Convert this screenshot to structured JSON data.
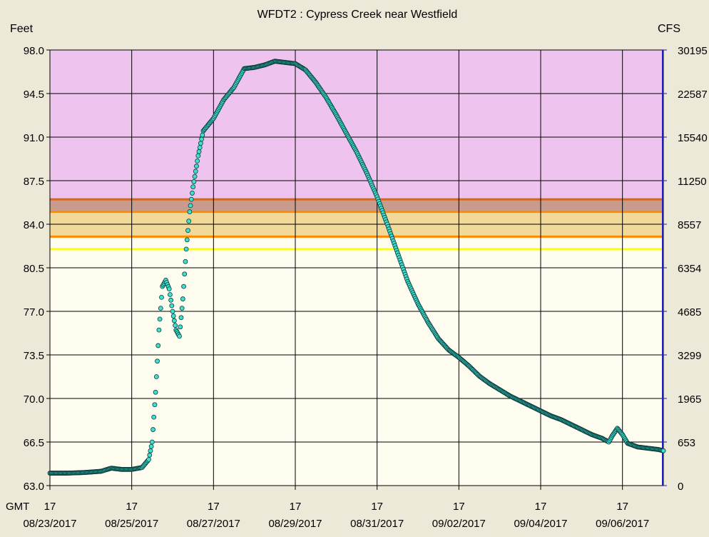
{
  "chart_data": {
    "type": "scatter",
    "title": "WFDT2  :  Cypress Creek near Westfield",
    "ylabel_left": "Feet",
    "ylabel_right": "CFS",
    "ylim": [
      63.0,
      98.0
    ],
    "y_ticks_left": [
      "98.0",
      "94.5",
      "91.0",
      "87.5",
      "84.0",
      "80.5",
      "77.0",
      "73.5",
      "70.0",
      "66.5",
      "63.0"
    ],
    "y_ticks_right": [
      "30195",
      "22587",
      "15540",
      "11250",
      "8557",
      "6354",
      "4685",
      "3299",
      "1965",
      "653",
      "0"
    ],
    "x_axis_prefix": "GMT",
    "x_ticks_hour": [
      "17",
      "17",
      "17",
      "17",
      "17",
      "17",
      "17",
      "17"
    ],
    "x_ticks_date": [
      "08/23/2017",
      "08/25/2017",
      "08/27/2017",
      "08/29/2017",
      "08/31/2017",
      "09/02/2017",
      "09/04/2017",
      "09/06/2017"
    ],
    "x_start": "2017-08-23T17:00Z",
    "x_end": "2017-09-07T17:00Z",
    "stage_bands": [
      {
        "from": 86.0,
        "to": 98.0,
        "color": "#eec3ee"
      },
      {
        "from": 85.0,
        "to": 86.0,
        "color": "#c89b8c"
      },
      {
        "from": 83.0,
        "to": 85.0,
        "color": "#f1d99a"
      },
      {
        "from": 63.0,
        "to": 83.0,
        "color": "#fffdf0"
      }
    ],
    "threshold_lines": [
      {
        "value": 86.0,
        "color": "#d2691e"
      },
      {
        "value": 85.0,
        "color": "#ff8c00"
      },
      {
        "value": 83.0,
        "color": "#ff8c00"
      },
      {
        "value": 82.0,
        "color": "#ffff00"
      }
    ],
    "series": [
      {
        "marker_color": "#40e0d0",
        "points": [
          [
            "2017-08-23T17:00Z",
            64.0
          ],
          [
            "2017-08-24T03:00Z",
            64.0
          ],
          [
            "2017-08-24T13:00Z",
            64.05
          ],
          [
            "2017-08-24T23:00Z",
            64.15
          ],
          [
            "2017-08-25T05:00Z",
            64.4
          ],
          [
            "2017-08-25T11:00Z",
            64.3
          ],
          [
            "2017-08-25T17:00Z",
            64.3
          ],
          [
            "2017-08-25T23:00Z",
            64.45
          ],
          [
            "2017-08-26T03:00Z",
            65.1
          ],
          [
            "2017-08-26T05:00Z",
            66.5
          ],
          [
            "2017-08-26T07:00Z",
            70.5
          ],
          [
            "2017-08-26T09:00Z",
            75.5
          ],
          [
            "2017-08-26T11:00Z",
            79.0
          ],
          [
            "2017-08-26T13:00Z",
            79.5
          ],
          [
            "2017-08-26T15:00Z",
            78.8
          ],
          [
            "2017-08-26T17:00Z",
            77.0
          ],
          [
            "2017-08-26T19:00Z",
            75.5
          ],
          [
            "2017-08-26T21:00Z",
            75.0
          ],
          [
            "2017-08-26T23:00Z",
            78.0
          ],
          [
            "2017-08-27T01:00Z",
            82.0
          ],
          [
            "2017-08-27T03:00Z",
            85.0
          ],
          [
            "2017-08-27T05:00Z",
            87.0
          ],
          [
            "2017-08-27T08:00Z",
            89.5
          ],
          [
            "2017-08-27T11:00Z",
            91.5
          ],
          [
            "2017-08-27T17:00Z",
            92.5
          ],
          [
            "2017-08-27T23:00Z",
            94.0
          ],
          [
            "2017-08-28T05:00Z",
            95.0
          ],
          [
            "2017-08-28T11:00Z",
            96.5
          ],
          [
            "2017-08-28T17:00Z",
            96.6
          ],
          [
            "2017-08-28T23:00Z",
            96.8
          ],
          [
            "2017-08-29T05:00Z",
            97.1
          ],
          [
            "2017-08-29T11:00Z",
            97.0
          ],
          [
            "2017-08-29T17:00Z",
            96.9
          ],
          [
            "2017-08-29T23:00Z",
            96.4
          ],
          [
            "2017-08-30T05:00Z",
            95.4
          ],
          [
            "2017-08-30T11:00Z",
            94.2
          ],
          [
            "2017-08-30T17:00Z",
            92.8
          ],
          [
            "2017-08-30T23:00Z",
            91.3
          ],
          [
            "2017-08-31T05:00Z",
            89.8
          ],
          [
            "2017-08-31T11:00Z",
            88.1
          ],
          [
            "2017-08-31T17:00Z",
            86.2
          ],
          [
            "2017-08-31T23:00Z",
            84.0
          ],
          [
            "2017-09-01T05:00Z",
            81.7
          ],
          [
            "2017-09-01T11:00Z",
            79.4
          ],
          [
            "2017-09-01T17:00Z",
            77.6
          ],
          [
            "2017-09-01T23:00Z",
            76.1
          ],
          [
            "2017-09-02T05:00Z",
            74.8
          ],
          [
            "2017-09-02T11:00Z",
            73.9
          ],
          [
            "2017-09-02T17:00Z",
            73.3
          ],
          [
            "2017-09-02T23:00Z",
            72.6
          ],
          [
            "2017-09-03T05:00Z",
            71.8
          ],
          [
            "2017-09-03T11:00Z",
            71.2
          ],
          [
            "2017-09-03T17:00Z",
            70.7
          ],
          [
            "2017-09-03T23:00Z",
            70.2
          ],
          [
            "2017-09-04T05:00Z",
            69.8
          ],
          [
            "2017-09-04T11:00Z",
            69.4
          ],
          [
            "2017-09-04T17:00Z",
            69.0
          ],
          [
            "2017-09-04T23:00Z",
            68.6
          ],
          [
            "2017-09-05T05:00Z",
            68.3
          ],
          [
            "2017-09-05T11:00Z",
            67.9
          ],
          [
            "2017-09-05T17:00Z",
            67.5
          ],
          [
            "2017-09-05T23:00Z",
            67.1
          ],
          [
            "2017-09-06T05:00Z",
            66.8
          ],
          [
            "2017-09-06T09:00Z",
            66.5
          ],
          [
            "2017-09-06T11:00Z",
            67.0
          ],
          [
            "2017-09-06T14:00Z",
            67.6
          ],
          [
            "2017-09-06T17:00Z",
            67.1
          ],
          [
            "2017-09-06T20:00Z",
            66.4
          ],
          [
            "2017-09-07T02:00Z",
            66.1
          ],
          [
            "2017-09-07T08:00Z",
            66.0
          ],
          [
            "2017-09-07T14:00Z",
            65.9
          ],
          [
            "2017-09-07T17:00Z",
            65.8
          ]
        ]
      }
    ]
  }
}
